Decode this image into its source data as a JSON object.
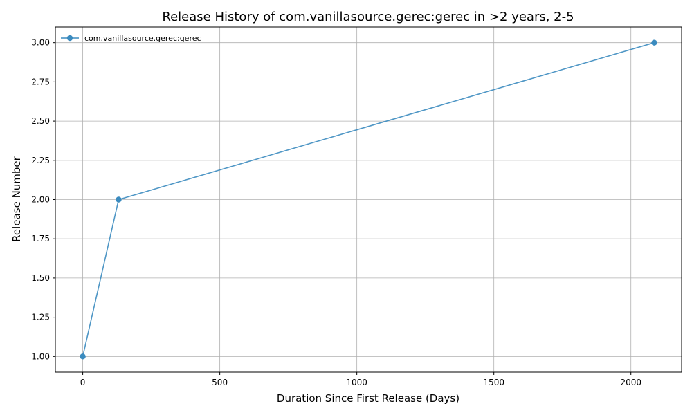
{
  "chart_data": {
    "type": "line",
    "title": "Release History of com.vanillasource.gerec:gerec in >2 years, 2-5",
    "xlabel": "Duration Since First Release (Days)",
    "ylabel": "Release Number",
    "xlim": [
      -100,
      2185
    ],
    "ylim": [
      0.9,
      3.1
    ],
    "xticks": [
      0,
      500,
      1000,
      1500,
      2000
    ],
    "yticks": [
      1.0,
      1.25,
      1.5,
      1.75,
      2.0,
      2.25,
      2.5,
      2.75,
      3.0
    ],
    "xtick_labels": [
      "0",
      "500",
      "1000",
      "1500",
      "2000"
    ],
    "ytick_labels": [
      "1.00",
      "1.25",
      "1.50",
      "1.75",
      "2.00",
      "2.25",
      "2.50",
      "2.75",
      "3.00"
    ],
    "grid": true,
    "legend_position": "top-left",
    "series": [
      {
        "name": "com.vanillasource.gerec:gerec",
        "color": "#3b8bbf",
        "marker": "circle",
        "x": [
          0,
          131,
          2085
        ],
        "y": [
          1,
          2,
          3
        ]
      }
    ]
  }
}
